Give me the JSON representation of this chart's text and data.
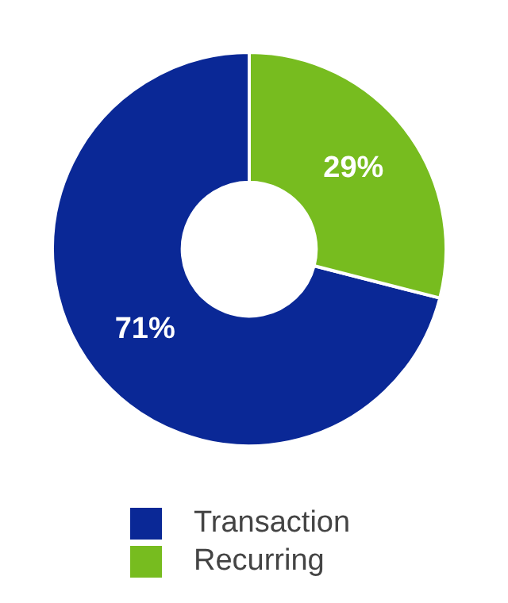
{
  "chart_data": {
    "type": "donut",
    "categories": [
      "Transaction",
      "Recurring"
    ],
    "values": [
      71,
      29
    ],
    "colors": [
      "#0a2896",
      "#77bc1f"
    ],
    "value_labels": [
      "71%",
      "29%"
    ],
    "legend": "bottom"
  }
}
